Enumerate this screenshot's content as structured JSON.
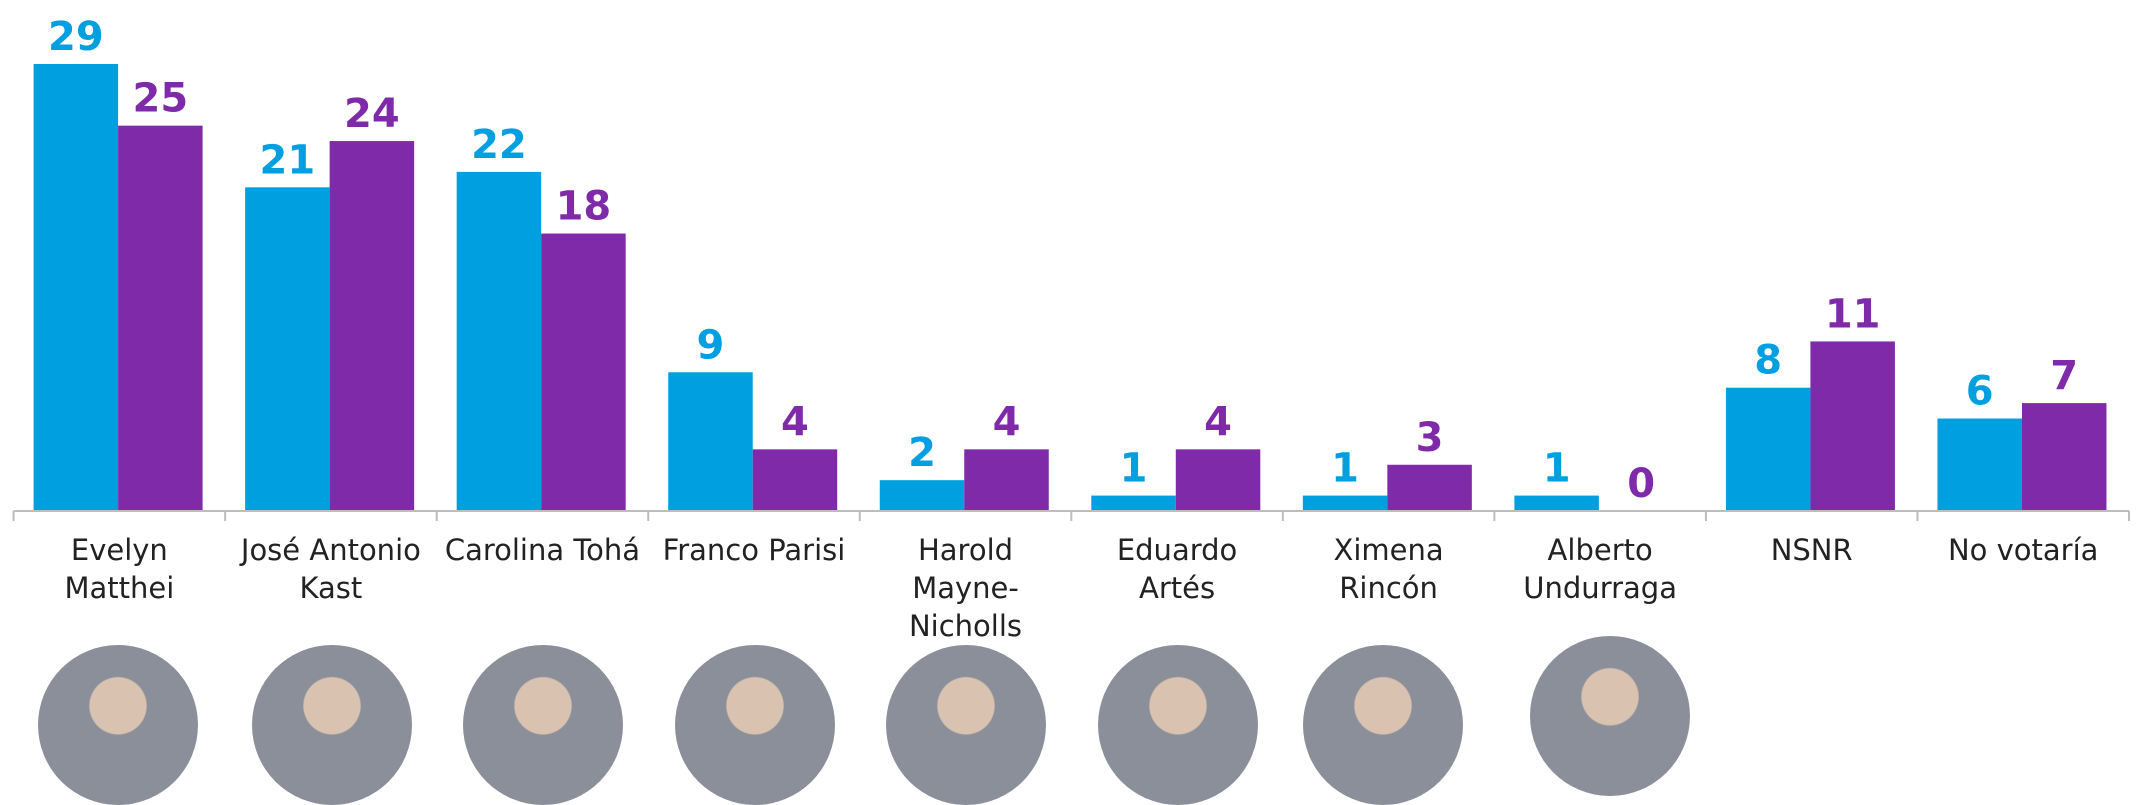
{
  "chart_data": {
    "type": "bar",
    "categories": [
      "Evelyn Matthei",
      "José Antonio Kast",
      "Carolina Tohá",
      "Franco Parisi",
      "Harold Mayne-Nicholls",
      "Eduardo Artés",
      "Ximena Rincón",
      "Alberto Undurraga",
      "NSNR",
      "No votaría"
    ],
    "series": [
      {
        "color": "#009fe0",
        "values": [
          29,
          21,
          22,
          9,
          2,
          1,
          1,
          1,
          8,
          6
        ]
      },
      {
        "color": "#7f2aa8",
        "values": [
          25,
          24,
          18,
          4,
          4,
          4,
          3,
          0,
          11,
          7
        ]
      }
    ]
  }
}
